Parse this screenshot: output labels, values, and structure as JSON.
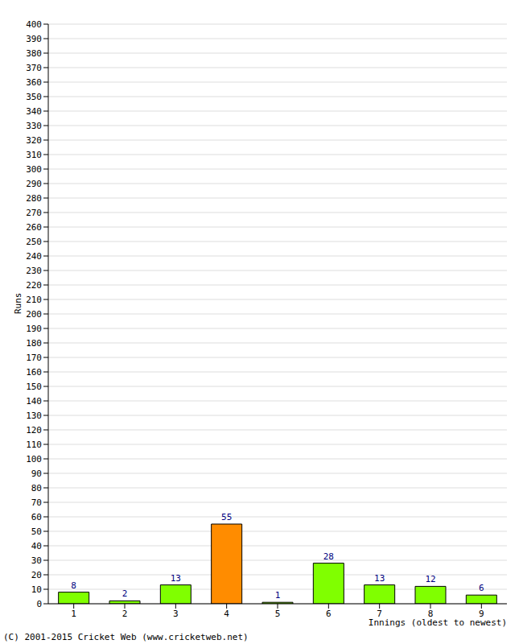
{
  "chart_data": {
    "type": "bar",
    "categories": [
      "1",
      "2",
      "3",
      "4",
      "5",
      "6",
      "7",
      "8",
      "9"
    ],
    "values": [
      8,
      2,
      13,
      55,
      1,
      28,
      13,
      12,
      6
    ],
    "colors": [
      "#80ff00",
      "#80ff00",
      "#80ff00",
      "#ff8c00",
      "#80ff00",
      "#80ff00",
      "#80ff00",
      "#80ff00",
      "#80ff00"
    ],
    "y_label": "Runs",
    "x_label": "Innings (oldest to newest)",
    "annotations": [
      "(C) 2001-2015 Cricket Web (www.cricketweb.net)"
    ],
    "ylim": [
      0,
      400
    ],
    "yticks": [
      0,
      10,
      20,
      30,
      40,
      50,
      60,
      70,
      80,
      90,
      100,
      110,
      120,
      130,
      140,
      150,
      160,
      170,
      180,
      190,
      200,
      210,
      220,
      230,
      240,
      250,
      260,
      270,
      280,
      290,
      300,
      310,
      320,
      330,
      340,
      350,
      360,
      370,
      380,
      390,
      400
    ],
    "grid": true,
    "data_labels": true
  }
}
